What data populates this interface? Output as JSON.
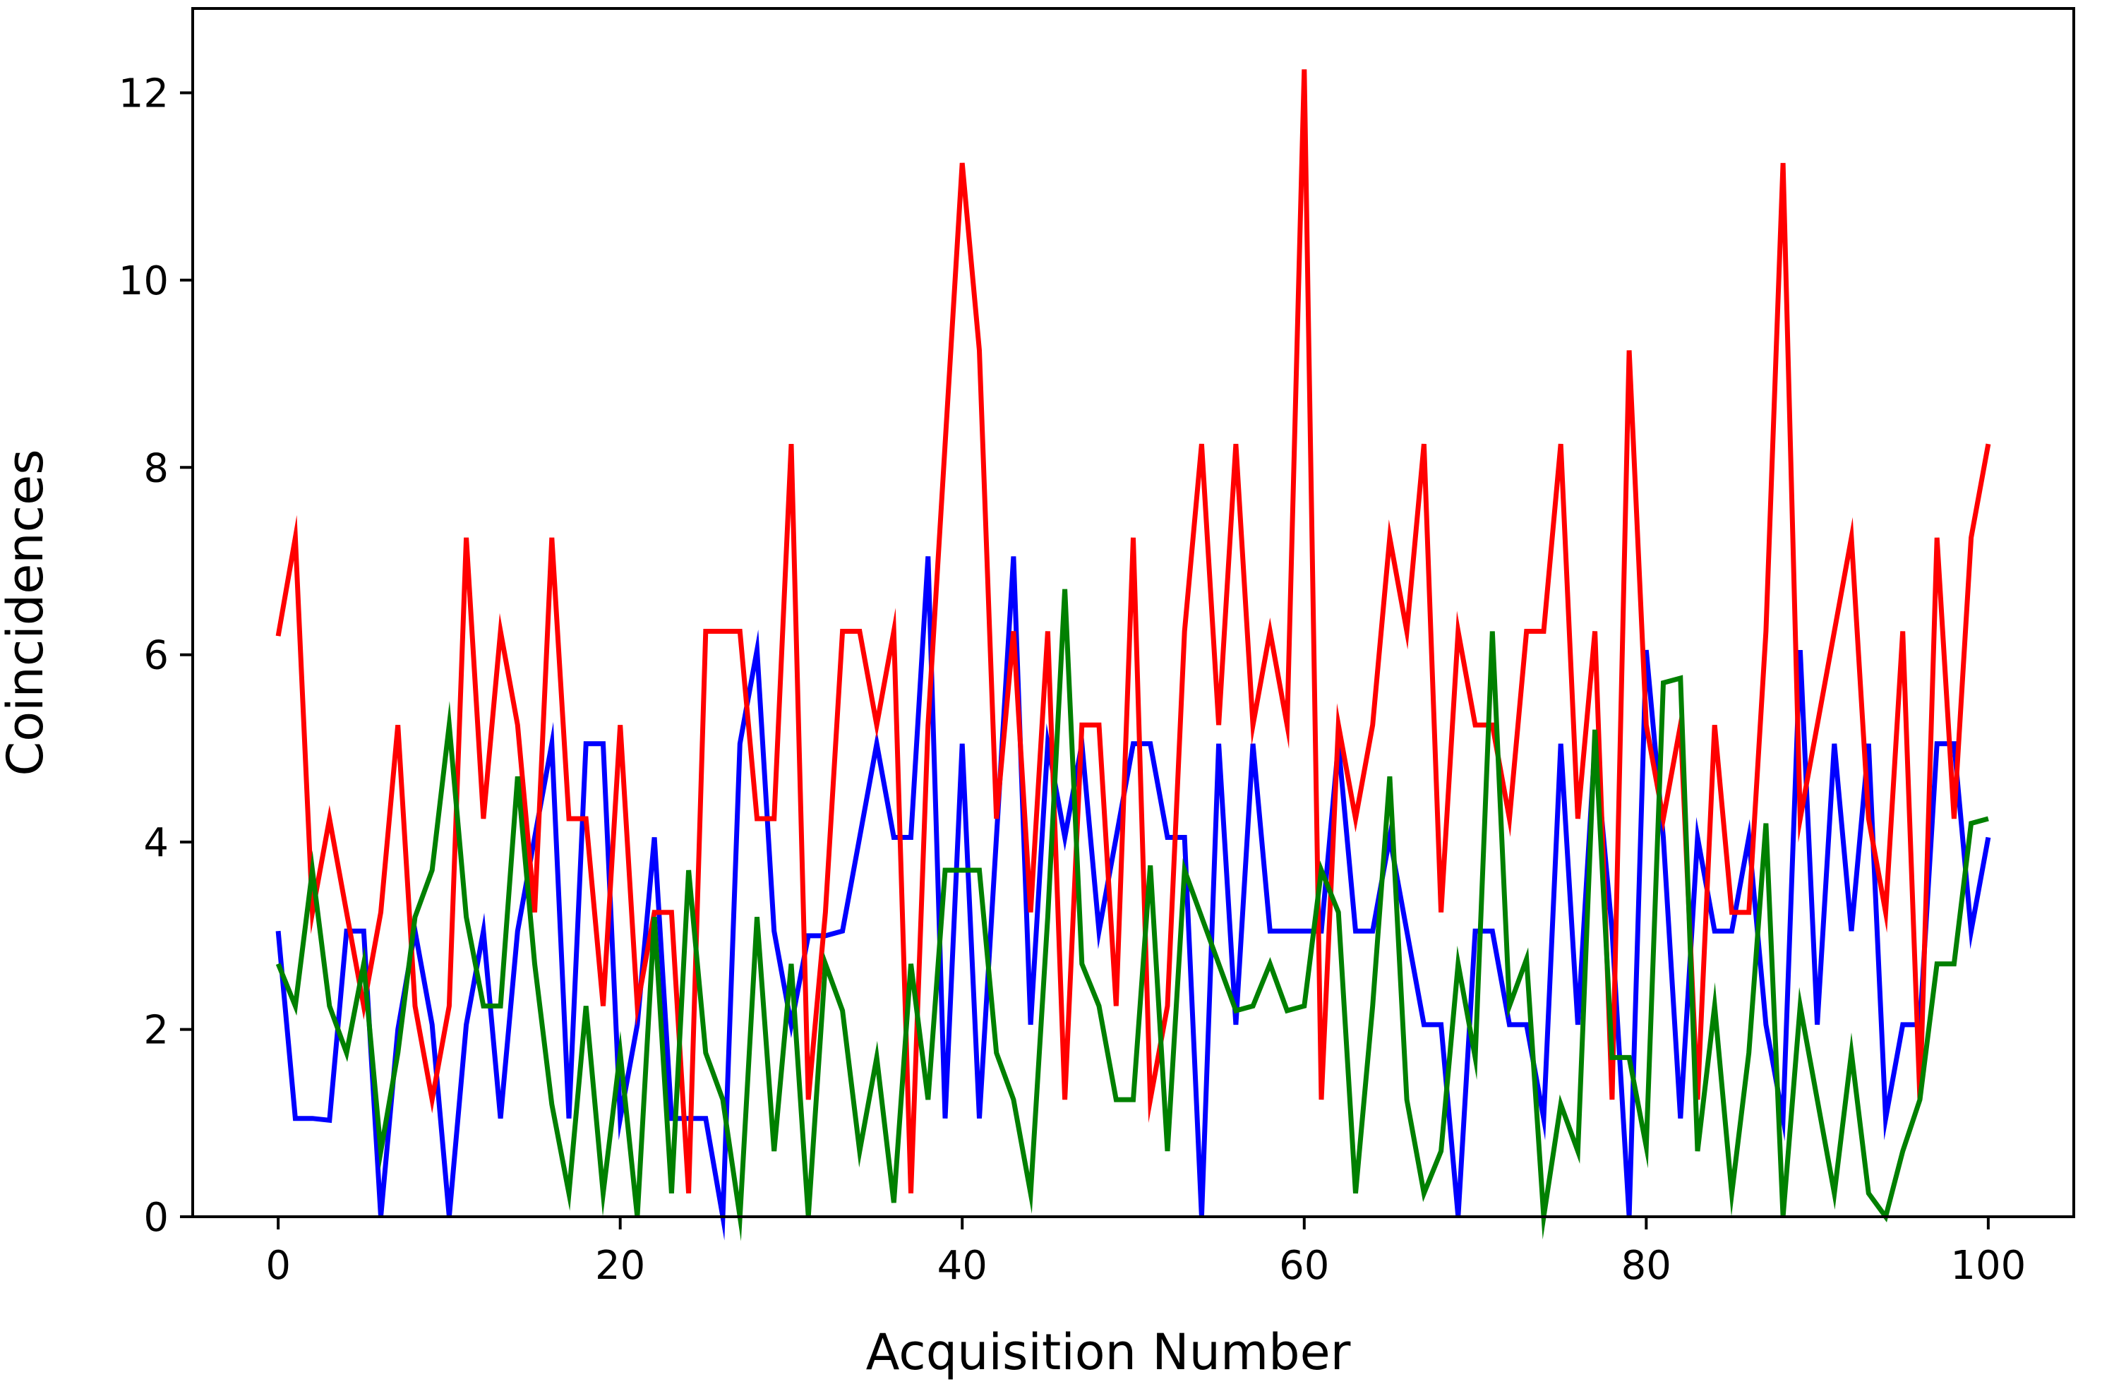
{
  "chart_data": {
    "type": "line",
    "title": "",
    "xlabel": "Acquisition Number",
    "ylabel": "Coincidences",
    "xlim": [
      -5,
      105
    ],
    "ylim": [
      0,
      12.9
    ],
    "xticks": [
      0,
      20,
      40,
      60,
      80,
      100
    ],
    "yticks": [
      0,
      2,
      4,
      6,
      8,
      10,
      12
    ],
    "grid": false,
    "legend": "none",
    "x": [
      0,
      1,
      2,
      3,
      4,
      5,
      6,
      7,
      8,
      9,
      10,
      11,
      12,
      13,
      14,
      15,
      16,
      17,
      18,
      19,
      20,
      21,
      22,
      23,
      24,
      25,
      26,
      27,
      28,
      29,
      30,
      31,
      32,
      33,
      34,
      35,
      36,
      37,
      38,
      39,
      40,
      41,
      42,
      43,
      44,
      45,
      46,
      47,
      48,
      49,
      50,
      51,
      52,
      53,
      54,
      55,
      56,
      57,
      58,
      59,
      60,
      61,
      62,
      63,
      64,
      65,
      66,
      67,
      68,
      69,
      70,
      71,
      72,
      73,
      74,
      75,
      76,
      77,
      78,
      79,
      80,
      81,
      82,
      83,
      84,
      85,
      86,
      87,
      88,
      89,
      90,
      91,
      92,
      93,
      94,
      95,
      96,
      97,
      98,
      99,
      100
    ],
    "series": [
      {
        "color": "#0000ff",
        "values": [
          3.05,
          1.05,
          1.05,
          1.03,
          3.05,
          3.05,
          0.0,
          2.0,
          3.05,
          2.05,
          0.0,
          2.05,
          3.05,
          1.05,
          3.05,
          4.05,
          5.05,
          1.05,
          5.05,
          5.05,
          1.05,
          2.05,
          4.05,
          1.05,
          1.05,
          1.05,
          0.0,
          5.05,
          6.05,
          3.05,
          2.05,
          3.0,
          3.0,
          3.05,
          4.05,
          5.05,
          4.05,
          4.05,
          7.05,
          1.05,
          5.05,
          1.05,
          4.05,
          7.05,
          2.05,
          5.05,
          4.05,
          5.05,
          3.05,
          4.05,
          5.05,
          5.05,
          4.05,
          4.05,
          0.0,
          5.05,
          2.05,
          5.05,
          3.05,
          3.05,
          3.05,
          3.05,
          5.05,
          3.05,
          3.05,
          4.05,
          3.05,
          2.05,
          2.05,
          0.0,
          3.05,
          3.05,
          2.05,
          2.05,
          1.05,
          5.05,
          2.05,
          5.05,
          3.05,
          0.0,
          6.05,
          4.05,
          1.05,
          4.05,
          3.05,
          3.05,
          4.05,
          2.05,
          1.05,
          6.05,
          2.05,
          5.05,
          3.05,
          5.05,
          1.05,
          2.05,
          2.05,
          5.05,
          5.05,
          3.05,
          4.05
        ]
      },
      {
        "color": "#ff0000",
        "values": [
          6.2,
          7.25,
          3.25,
          4.25,
          3.25,
          2.25,
          3.25,
          5.25,
          2.25,
          1.25,
          2.25,
          7.25,
          4.25,
          6.25,
          5.25,
          3.25,
          7.25,
          4.25,
          4.25,
          2.25,
          5.25,
          2.25,
          3.25,
          3.25,
          0.25,
          6.25,
          6.25,
          6.25,
          4.25,
          4.25,
          8.25,
          1.25,
          3.25,
          6.25,
          6.25,
          5.25,
          6.25,
          0.25,
          5.25,
          8.25,
          11.25,
          9.25,
          4.25,
          6.25,
          3.25,
          6.25,
          1.25,
          5.25,
          5.25,
          2.25,
          7.25,
          1.25,
          2.25,
          6.25,
          8.25,
          5.25,
          8.25,
          5.25,
          6.25,
          5.25,
          12.25,
          1.25,
          5.25,
          4.25,
          5.25,
          7.25,
          6.25,
          8.25,
          3.25,
          6.25,
          5.25,
          5.25,
          4.25,
          6.25,
          6.25,
          8.25,
          4.25,
          6.25,
          1.25,
          9.25,
          5.25,
          4.25,
          5.25,
          1.25,
          5.25,
          3.25,
          3.25,
          6.25,
          11.25,
          4.25,
          5.25,
          6.25,
          7.25,
          4.25,
          3.25,
          6.25,
          1.25,
          7.25,
          4.25,
          7.25,
          8.25
        ]
      },
      {
        "color": "#008000",
        "values": [
          2.7,
          2.25,
          3.7,
          2.25,
          1.75,
          2.7,
          0.7,
          1.75,
          3.2,
          3.7,
          5.25,
          3.2,
          2.25,
          2.25,
          4.7,
          2.7,
          1.2,
          0.25,
          2.25,
          0.25,
          1.75,
          0.0,
          3.2,
          0.25,
          3.7,
          1.75,
          1.25,
          0.0,
          3.2,
          0.7,
          2.7,
          0.0,
          2.7,
          2.2,
          0.7,
          1.7,
          0.15,
          2.7,
          1.25,
          3.7,
          3.7,
          3.7,
          1.75,
          1.25,
          0.25,
          3.2,
          6.7,
          2.7,
          2.25,
          1.25,
          1.25,
          3.75,
          0.7,
          3.7,
          3.2,
          2.7,
          2.2,
          2.25,
          2.7,
          2.2,
          2.25,
          3.7,
          3.25,
          0.25,
          2.25,
          4.7,
          1.25,
          0.25,
          0.7,
          2.7,
          1.7,
          6.25,
          2.25,
          2.75,
          0.0,
          1.2,
          0.7,
          5.2,
          1.7,
          1.7,
          0.75,
          5.7,
          5.75,
          0.7,
          2.25,
          0.25,
          1.75,
          4.2,
          0.0,
          2.25,
          1.25,
          0.25,
          1.75,
          0.25,
          0.0,
          0.7,
          1.25,
          2.7,
          2.7,
          4.2,
          4.25
        ]
      }
    ]
  }
}
